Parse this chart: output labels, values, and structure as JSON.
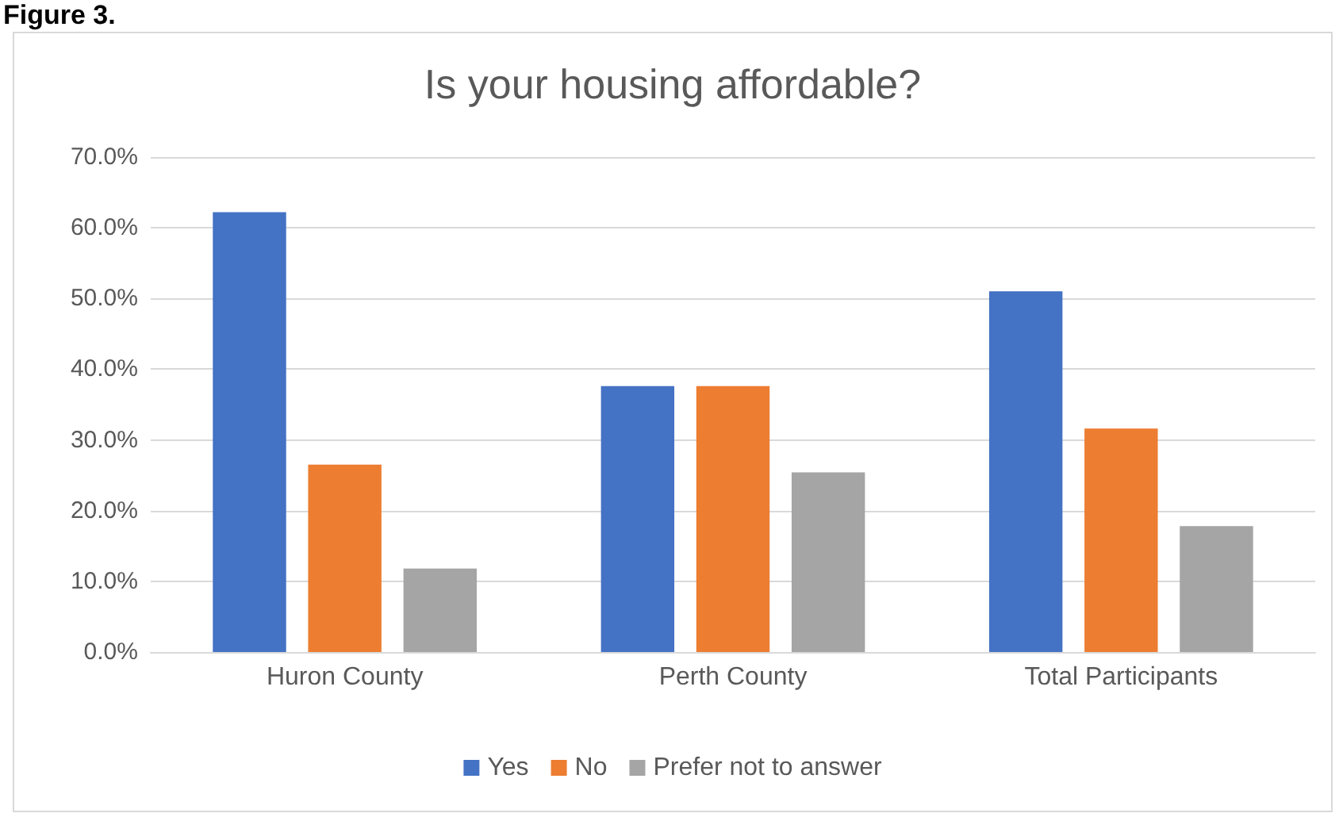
{
  "chart_data": {
    "type": "bar",
    "title": "Is your housing affordable?",
    "annotations": [
      "Figure 3."
    ],
    "categories": [
      "Huron County",
      "Perth County",
      "Total Participants"
    ],
    "series": [
      {
        "name": "Yes",
        "color": "#4472c4",
        "values": [
          62.2,
          37.6,
          51.0
        ]
      },
      {
        "name": "No",
        "color": "#ed7d31",
        "values": [
          26.5,
          37.6,
          31.6
        ]
      },
      {
        "name": "Prefer not to answer",
        "color": "#a5a5a5",
        "values": [
          11.8,
          25.4,
          17.8
        ]
      }
    ],
    "ylim": [
      0,
      70
    ],
    "yticks": [
      {
        "value": 0,
        "label": "0.0%"
      },
      {
        "value": 10,
        "label": "10.0%"
      },
      {
        "value": 20,
        "label": "20.0%"
      },
      {
        "value": 30,
        "label": "30.0%"
      },
      {
        "value": 40,
        "label": "40.0%"
      },
      {
        "value": 50,
        "label": "50.0%"
      },
      {
        "value": 60,
        "label": "60.0%"
      },
      {
        "value": 70,
        "label": "70.0%"
      }
    ],
    "grid": "y",
    "legend": "bottom"
  }
}
